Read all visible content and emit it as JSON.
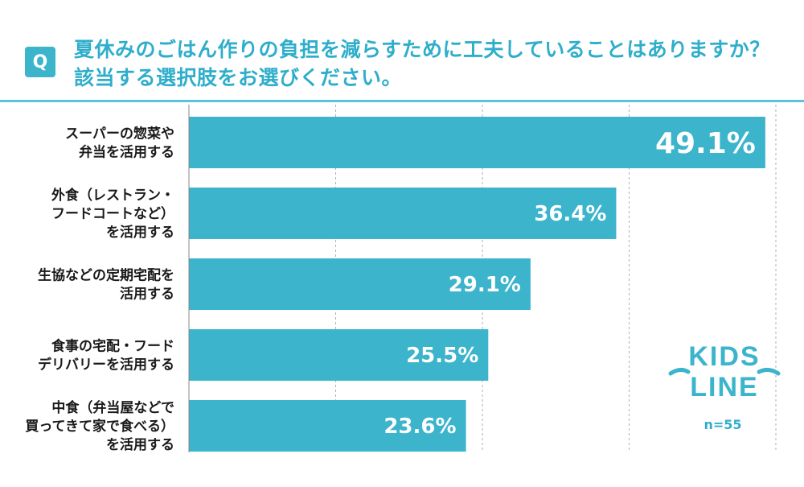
{
  "header": {
    "q_badge": "Q",
    "title": "夏休みのごはん作りの負担を減らすために工夫していることはありますか？該当する選択肢をお選びください。"
  },
  "chart_data": {
    "type": "bar",
    "orientation": "horizontal",
    "categories": [
      [
        "スーパーの惣菜や",
        "弁当を活用する"
      ],
      [
        "外食（レストラン・",
        "フードコートなど）",
        "を活用する"
      ],
      [
        "生協などの定期宅配を",
        "活用する"
      ],
      [
        "食事の宅配・フード",
        "デリバリーを活用する"
      ],
      [
        "中食（弁当屋などで",
        "買ってきて家で食べる）",
        "を活用する"
      ]
    ],
    "values": [
      49.1,
      36.4,
      29.1,
      25.5,
      23.6
    ],
    "value_labels": [
      "49.1%",
      "36.4%",
      "29.1%",
      "25.5%",
      "23.6%"
    ],
    "xlim": [
      0,
      50
    ],
    "grid": true,
    "bar_color": "#3bb4cc"
  },
  "logo": {
    "line1": "KIDS",
    "line2": "LINE"
  },
  "sample_size": "n=55",
  "colors": {
    "accent": "#3bb4cc",
    "title": "#2eaecb",
    "grid": "#b0b0b0"
  }
}
